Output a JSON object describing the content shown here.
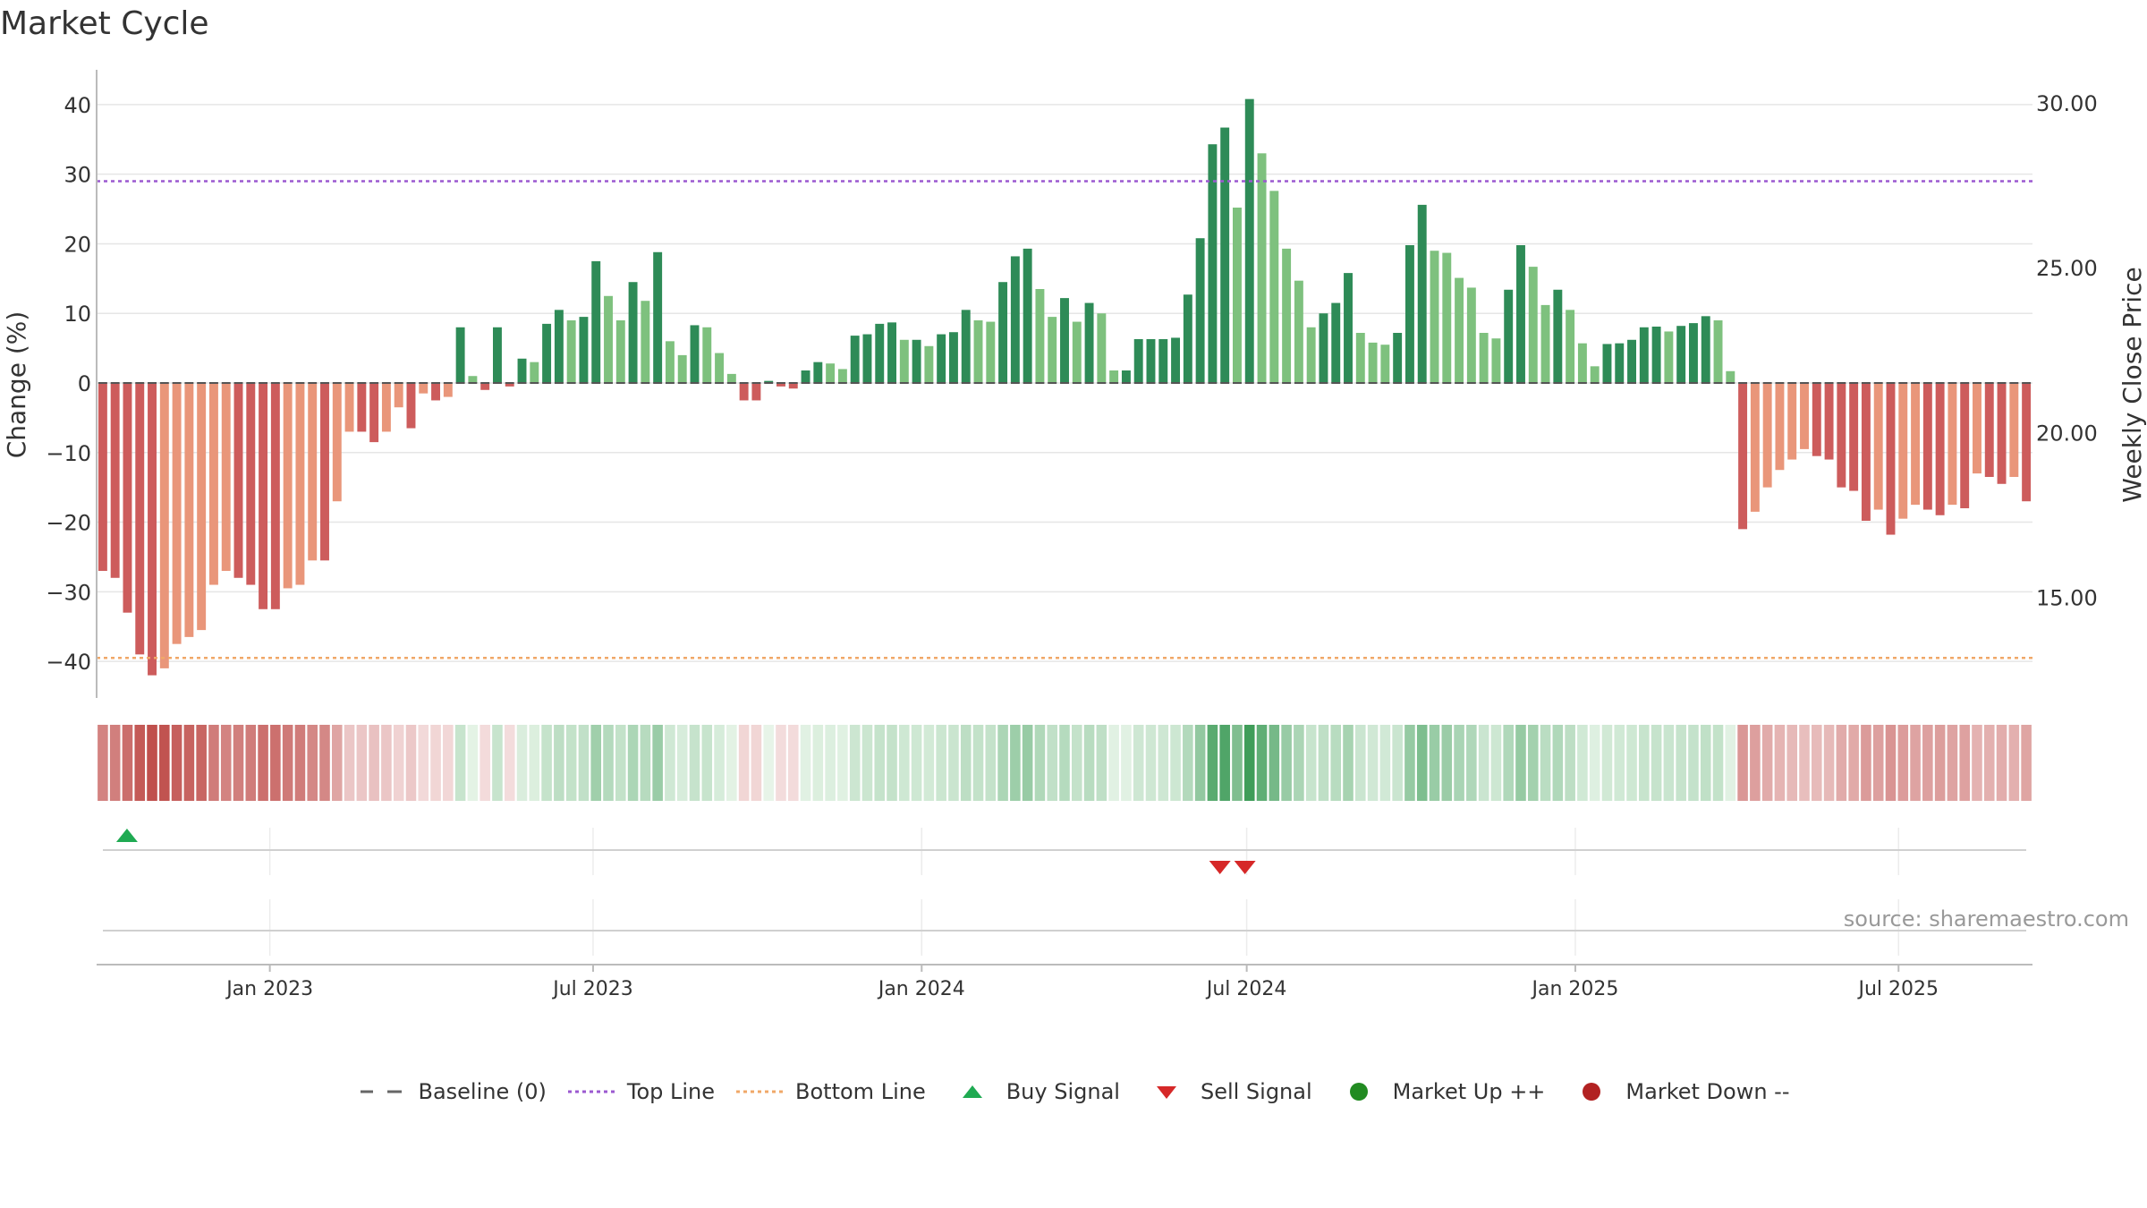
{
  "title": "Market Cycle",
  "watermark": "source: sharemaestro.com",
  "chart_data": {
    "type": "bar",
    "title": "Market Cycle",
    "ylabel": "Change (%)",
    "y2label": "Weekly Close Price",
    "ylim": [
      -45,
      45
    ],
    "y2lim": [
      12.0,
      31.0
    ],
    "yticks": [
      40,
      30,
      20,
      10,
      0,
      -10,
      -20,
      -30,
      -40
    ],
    "yticklabels": [
      "40",
      "30",
      "20",
      "10",
      "0",
      "−10",
      "−20",
      "−30",
      "−40"
    ],
    "y2ticks": [
      30,
      25,
      20,
      15
    ],
    "y2ticklabels": [
      "30.00",
      "25.00",
      "20.00",
      "15.00"
    ],
    "xlim": [
      "2022-09-26",
      "2025-09-14"
    ],
    "xticks": [
      "2023-01-01",
      "2023-07-01",
      "2024-01-01",
      "2024-07-01",
      "2025-01-01",
      "2025-07-01"
    ],
    "xticklabels": [
      "Jan 2023",
      "Jul 2023",
      "Jan 2024",
      "Jul 2024",
      "Jan 2025",
      "Jul 2025"
    ],
    "first_week": "2022-09-29",
    "top_line": 29,
    "bottom_line": -39.5,
    "baseline": 0,
    "grid": true,
    "legend_position": "bottom",
    "values": [
      -27,
      -28,
      -33,
      -39,
      -42,
      -41,
      -37.5,
      -36.5,
      -35.5,
      -29,
      -27,
      -28,
      -29,
      -32.5,
      -32.5,
      -29.5,
      -29,
      -25.5,
      -25.5,
      -17,
      -7,
      -7,
      -8.5,
      -7,
      -3.5,
      -6.5,
      -1.5,
      -2.5,
      -2,
      8,
      1,
      -1,
      8,
      -0.5,
      3.5,
      3,
      8.5,
      10.5,
      9,
      9.5,
      17.5,
      12.5,
      9,
      14.5,
      11.8,
      18.8,
      6,
      4,
      8.3,
      8,
      4.3,
      1.3,
      -2.5,
      -2.5,
      0.3,
      -0.5,
      -0.8,
      1.8,
      3,
      2.8,
      2,
      6.8,
      7,
      8.5,
      8.7,
      6.2,
      6.2,
      5.3,
      7,
      7.3,
      10.5,
      9,
      8.8,
      14.5,
      18.2,
      19.3,
      13.5,
      9.5,
      12.2,
      8.8,
      11.5,
      10,
      1.8,
      1.8,
      6.3,
      6.3,
      6.3,
      6.5,
      12.7,
      20.8,
      34.3,
      36.7,
      25.2,
      40.8,
      33,
      27.6,
      19.3,
      14.7,
      8,
      10,
      11.5,
      15.8,
      7.2,
      5.8,
      5.5,
      7.2,
      19.8,
      25.6,
      19,
      18.7,
      15.1,
      13.7,
      7.2,
      6.4,
      13.4,
      19.8,
      16.7,
      11.2,
      13.4,
      10.5,
      5.7,
      2.4,
      5.6,
      5.7,
      6.2,
      8,
      8.1,
      7.4,
      8.2,
      8.6,
      9.6,
      9,
      1.7,
      -21,
      -18.5,
      -15,
      -12.5,
      -11,
      -9.5,
      -10.5,
      -11,
      -15,
      -15.5,
      -19.8,
      -18.2,
      -21.8,
      -19.5,
      -17.5,
      -18.2,
      -19,
      -17.5,
      -18,
      -13,
      -13.5,
      -14.5,
      -13.5,
      -17
    ],
    "series": [
      {
        "name": "Baseline (0)"
      },
      {
        "name": "Top Line"
      },
      {
        "name": "Bottom Line"
      },
      {
        "name": "Buy Signal",
        "x": [
          "2022-10-13"
        ]
      },
      {
        "name": "Sell Signal",
        "x": [
          "2024-06-16",
          "2024-06-30"
        ]
      },
      {
        "name": "Market Up ++"
      },
      {
        "name": "Market Down --"
      }
    ]
  },
  "colors": {
    "dark_green": "#2e8b57",
    "light_green": "#7ec17e",
    "dark_red": "#cd5c5c",
    "light_red": "#e9967a",
    "top_line": "#9b59d0",
    "bottom_line": "#f0a868",
    "baseline": "#666666",
    "buy": "#1faa52",
    "sell": "#d62828",
    "market_up": "#228b22",
    "market_down": "#b22222"
  },
  "legend": [
    {
      "label": "Baseline (0)",
      "symbol": "dash-line"
    },
    {
      "label": "Top Line",
      "symbol": "dot-line-purple"
    },
    {
      "label": "Bottom Line",
      "symbol": "dot-line-orange"
    },
    {
      "label": "Buy Signal",
      "symbol": "triangle-up"
    },
    {
      "label": "Sell Signal",
      "symbol": "triangle-down"
    },
    {
      "label": "Market Up ++",
      "symbol": "dot-green"
    },
    {
      "label": "Market Down --",
      "symbol": "dot-red"
    }
  ]
}
